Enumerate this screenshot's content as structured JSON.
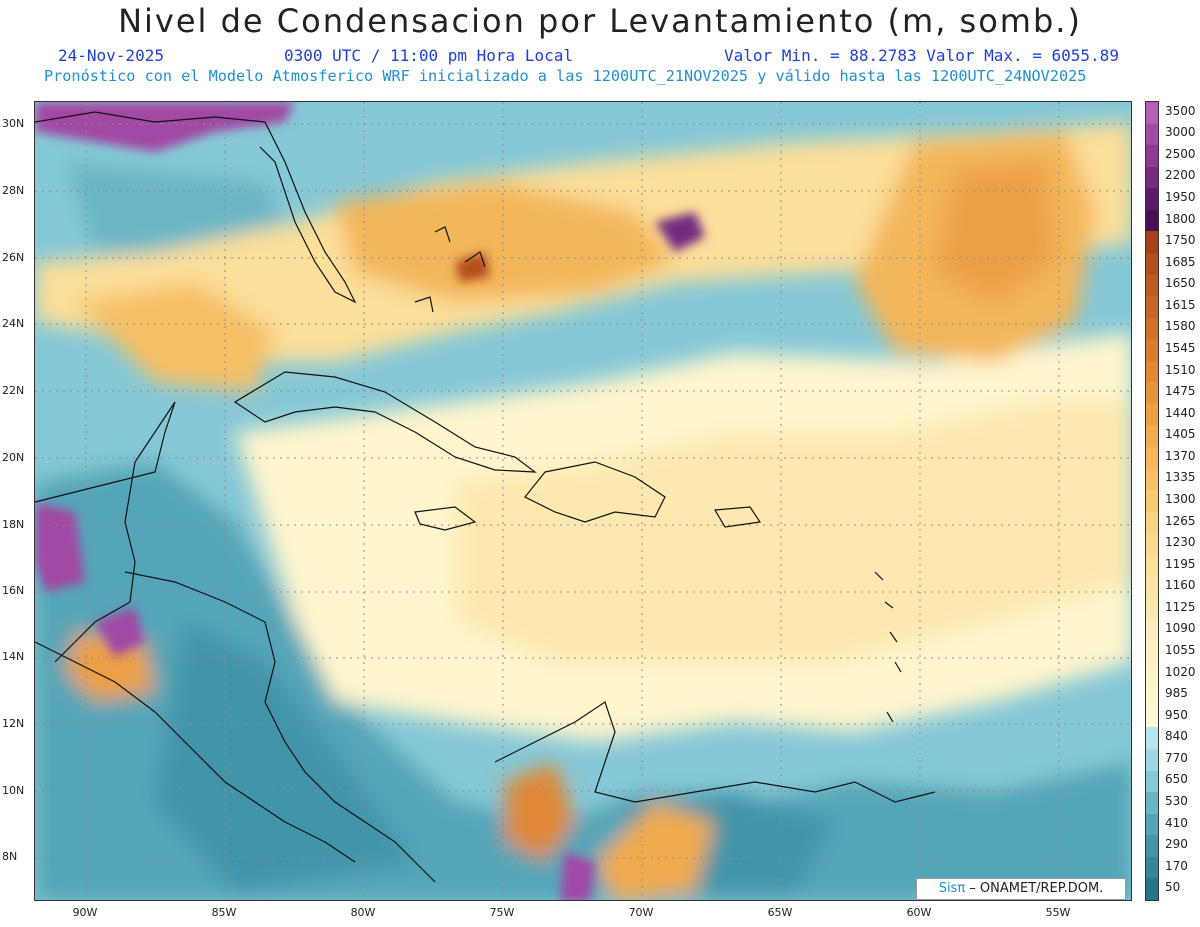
{
  "title": "Nivel de Condensacion por Levantamiento (m, somb.)",
  "date": "24-Nov-2025",
  "time": "0300 UTC / 11:00 pm Hora Local",
  "min_max": "Valor Min. = 88.2783  Valor Max. = 6055.89",
  "forecast": "Pronóstico con el Modelo Atmosferico WRF inicializado a las 1200UTC_21NOV2025 y válido hasta las  1200UTC_24NOV2025",
  "credit": {
    "brand": "Sisπ",
    "rest": " – ONAMET/REP.DOM."
  },
  "lat_labels": [
    "30N",
    "28N",
    "26N",
    "24N",
    "22N",
    "20N",
    "18N",
    "16N",
    "14N",
    "12N",
    "10N",
    "8N"
  ],
  "lon_labels": [
    "90W",
    "85W",
    "80W",
    "75W",
    "70W",
    "65W",
    "60W",
    "55W"
  ],
  "colorbar": {
    "labels": [
      "3500",
      "3000",
      "2500",
      "2200",
      "1950",
      "1800",
      "1750",
      "1685",
      "1650",
      "1615",
      "1580",
      "1545",
      "1510",
      "1475",
      "1440",
      "1405",
      "1370",
      "1335",
      "1300",
      "1265",
      "1230",
      "1195",
      "1160",
      "1125",
      "1090",
      "1055",
      "1020",
      "985",
      "950",
      "840",
      "770",
      "650",
      "530",
      "410",
      "290",
      "170",
      "50"
    ],
    "colors": [
      "#b45fb6",
      "#a04aa5",
      "#8c3a94",
      "#752a80",
      "#5e1a6b",
      "#4a1055",
      "#a8401c",
      "#b34c1e",
      "#bf5a22",
      "#c86526",
      "#d0702a",
      "#d87c30",
      "#e08836",
      "#e6943c",
      "#eca044",
      "#f0ab4e",
      "#f3b65a",
      "#f6c066",
      "#f8ca74",
      "#f9d282",
      "#fad98e",
      "#fbdf9a",
      "#fce4a6",
      "#fde9b0",
      "#fdedba",
      "#feefbf",
      "#fef2c6",
      "#fef5cd",
      "#fef7d4",
      "#b8e6ee",
      "#9fd8e4",
      "#86c8d6",
      "#6ab6c6",
      "#55a5b8",
      "#4394a9",
      "#35849a",
      "#2a748a"
    ]
  }
}
